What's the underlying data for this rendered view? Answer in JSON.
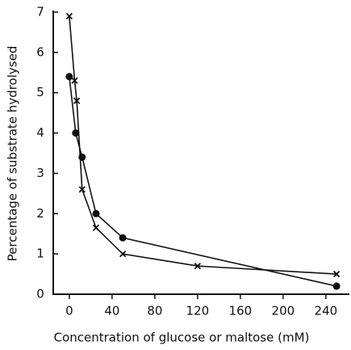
{
  "chart_data": {
    "type": "line",
    "x_label": "Concentration of glucose or maltose (mM)",
    "y_label": "Percentage of substrate hydrolysed",
    "xlim": [
      -15,
      262
    ],
    "xticks": [
      0,
      40,
      80,
      120,
      160,
      200,
      240
    ],
    "ylim": [
      0,
      7
    ],
    "yticks": [
      0,
      1,
      2,
      3,
      4,
      5,
      6,
      7
    ],
    "grid": false,
    "series": [
      {
        "color": "#111111",
        "marker": "circle",
        "x": [
          0,
          6,
          12,
          25,
          50,
          250
        ],
        "values": [
          5.4,
          4.0,
          3.4,
          2.0,
          1.4,
          0.2
        ]
      },
      {
        "color": "#111111",
        "marker": "cross",
        "x": [
          0,
          5,
          7,
          12,
          25,
          50,
          120,
          250
        ],
        "values": [
          6.9,
          5.3,
          4.8,
          2.6,
          1.65,
          1.0,
          0.7,
          0.5
        ]
      }
    ]
  }
}
